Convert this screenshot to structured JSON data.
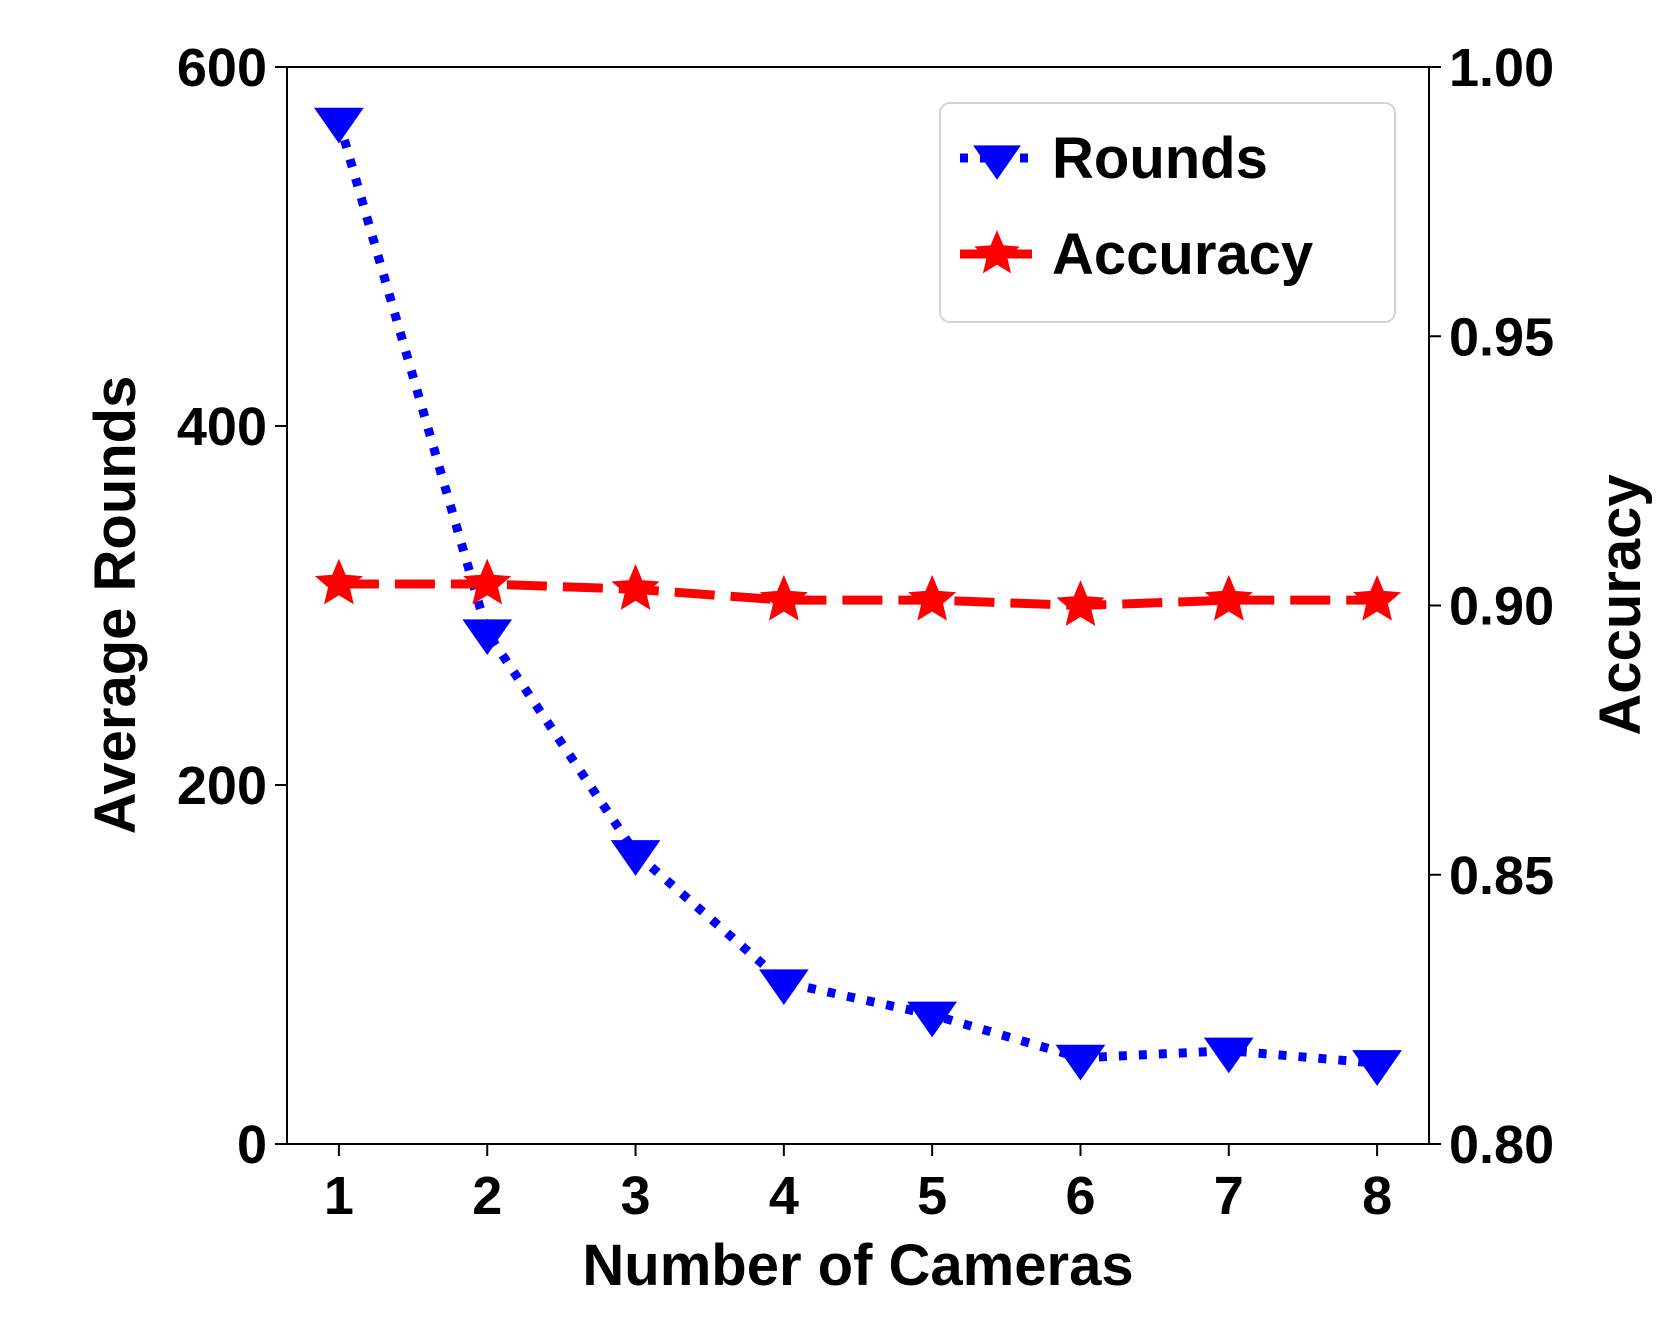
{
  "chart_data": {
    "type": "line",
    "title": "",
    "xlabel": "Number of Cameras",
    "ylabel": "Average Rounds",
    "y2label": "Accuracy",
    "x": [
      1,
      2,
      3,
      4,
      5,
      6,
      7,
      8
    ],
    "xlim": [
      0.65,
      8.35
    ],
    "ylim": [
      0,
      600
    ],
    "y2lim": [
      0.8,
      1.0
    ],
    "xticks": [
      "1",
      "2",
      "3",
      "4",
      "5",
      "6",
      "7",
      "8"
    ],
    "yticks": [
      "0",
      "200",
      "400",
      "600"
    ],
    "y2ticks": [
      "0.80",
      "0.85",
      "0.90",
      "0.95",
      "1.00"
    ],
    "grid": false,
    "legend_position": "top-right",
    "series": [
      {
        "name": "Rounds",
        "axis": "left",
        "values": [
          570,
          285,
          162,
          90,
          72,
          48,
          52,
          45
        ],
        "color": "#0000ff",
        "line_style": "dotted",
        "marker": "triangle-down"
      },
      {
        "name": "Accuracy",
        "axis": "right",
        "values": [
          0.904,
          0.904,
          0.903,
          0.901,
          0.901,
          0.9,
          0.901,
          0.901
        ],
        "color": "#ff0000",
        "line_style": "dashed",
        "marker": "star"
      }
    ]
  }
}
